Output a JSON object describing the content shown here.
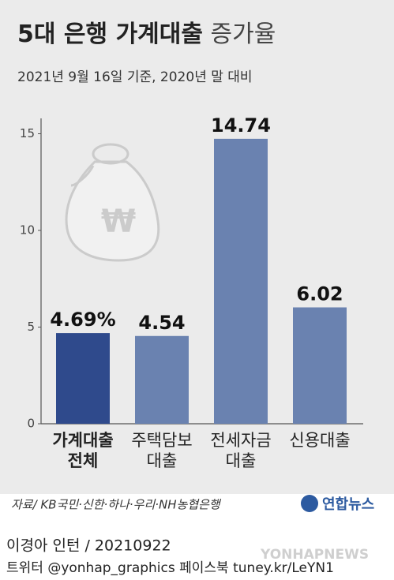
{
  "chart_data": {
    "type": "bar",
    "title": {
      "main": "5대 은행 가계대출",
      "rest": "증가율"
    },
    "subtitle": "2021년 9월 16일 기준, 2020년 말 대비",
    "categories": [
      "가계대출\n전체",
      "주택담보\n대출",
      "전세자금\n대출",
      "신용대출"
    ],
    "values": [
      4.69,
      4.54,
      14.74,
      6.02
    ],
    "value_labels": [
      "4.69%",
      "4.54",
      "14.74",
      "6.02"
    ],
    "colors": [
      "#2f4a8c",
      "#6a82b0",
      "#6a82b0",
      "#6a82b0"
    ],
    "ylim": [
      0,
      16
    ],
    "yticks": [
      0,
      5,
      10,
      15
    ]
  },
  "footer": {
    "source": "자료/ KB국민·신한·하나·우리·NH농협은행",
    "logo": "연합뉴스",
    "credit": "이경아 인턴 / 20210922",
    "sns": "트위터 @yonhap_graphics  페이스북 tuney.kr/LeYN1",
    "watermark": "YONHAPNEWS"
  }
}
